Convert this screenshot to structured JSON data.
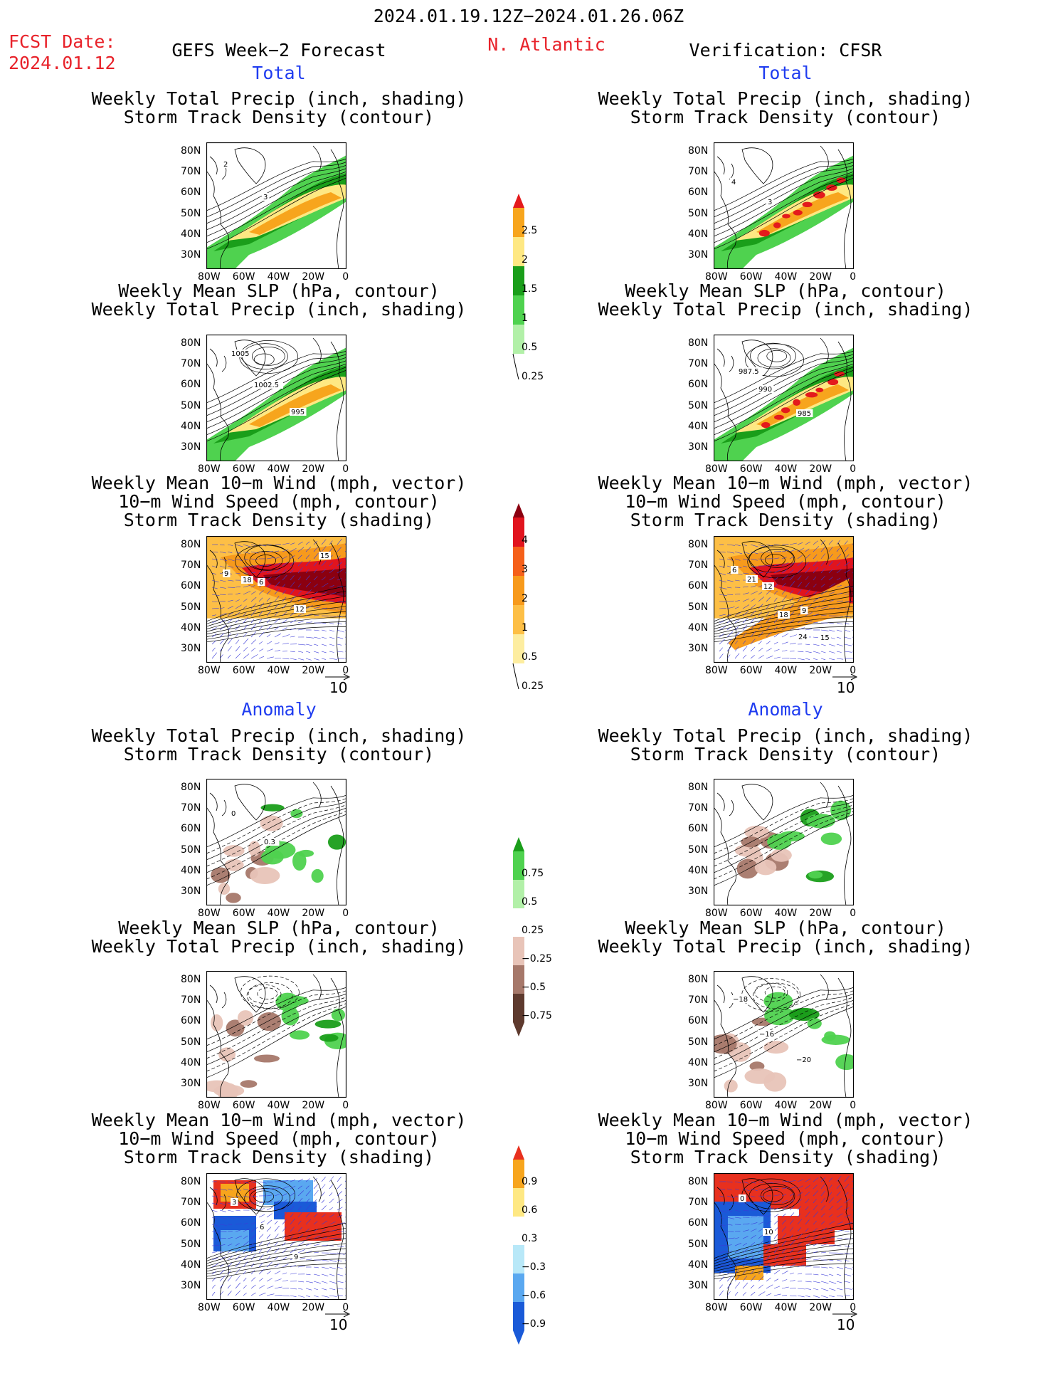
{
  "header": {
    "date_range": "2024.01.19.12Z−2024.01.26.06Z",
    "fcst_label": "FCST Date:",
    "fcst_date": "2024.01.12",
    "forecast_title": "GEFS Week−2 Forecast",
    "region": "N. Atlantic",
    "verification": "Verification: CFSR"
  },
  "sections": {
    "total": "Total",
    "anomaly": "Anomaly"
  },
  "panel_titles": {
    "precip_track": [
      "Weekly Total Precip (inch, shading)",
      "Storm Track Density (contour)"
    ],
    "slp_precip": [
      "Weekly Mean SLP (hPa, contour)",
      "Weekly Total Precip (inch, shading)"
    ],
    "wind_track": [
      "Weekly Mean 10−m Wind (mph, vector)",
      "10−m Wind Speed (mph, contour)",
      "Storm Track Density (shading)"
    ]
  },
  "axes": {
    "lat_labels": [
      "80N",
      "70N",
      "60N",
      "50N",
      "40N",
      "30N"
    ],
    "lon_labels": [
      "80W",
      "60W",
      "40W",
      "20W",
      "0"
    ]
  },
  "vector_ref": "10",
  "colorbars": {
    "precip_total": {
      "labels": [
        "2.5",
        "2",
        "1.5",
        "1",
        "0.5",
        "0.25"
      ],
      "colors": [
        "#e41a1c",
        "#f7a51d",
        "#fee883",
        "#1a9e1a",
        "#4fd24f",
        "#b2f0a8"
      ]
    },
    "track_total": {
      "labels": [
        "4",
        "3",
        "2",
        "1",
        "0.5",
        "0.25"
      ],
      "colors": [
        "#8b0010",
        "#e1141e",
        "#f5601a",
        "#f79a1c",
        "#fdbf46",
        "#fdeda0"
      ]
    },
    "precip_anom": {
      "labels": [
        "0.75",
        "0.5",
        "0.25",
        "−0.25",
        "−0.5",
        "−0.75"
      ],
      "colors": [
        "#1a9e1a",
        "#4fd24f",
        "#b2f0a8",
        "#ffffff",
        "#e8c4b8",
        "#a6786a",
        "#5e3a2e"
      ]
    },
    "track_anom": {
      "labels": [
        "0.9",
        "0.6",
        "0.3",
        "−0.3",
        "−0.6",
        "−0.9"
      ],
      "colors": [
        "#e8301e",
        "#f7a51d",
        "#fee883",
        "#ffffff",
        "#b8e8f8",
        "#5aa8f0",
        "#1a5ad8"
      ]
    }
  },
  "map_contour_labels": {
    "total_fcst_precip_track": [
      "2",
      "3"
    ],
    "total_ver_precip_track": [
      "4",
      "3"
    ],
    "total_fcst_slp": [
      "1005",
      "1002.5",
      "995"
    ],
    "total_ver_slp": [
      "987.5",
      "990",
      "985"
    ],
    "total_fcst_wind": [
      "9",
      "6",
      "12",
      "15",
      "18"
    ],
    "total_ver_wind": [
      "6",
      "12",
      "9",
      "15",
      "21",
      "18",
      "24"
    ],
    "anom_fcst_precip_track": [
      "0",
      "0.3"
    ],
    "anom_ver_slp": [
      "−18",
      "−16",
      "−20"
    ],
    "anom_fcst_wind": [
      "3",
      "6",
      "9"
    ],
    "anom_ver_wind": [
      "0",
      "10"
    ]
  }
}
